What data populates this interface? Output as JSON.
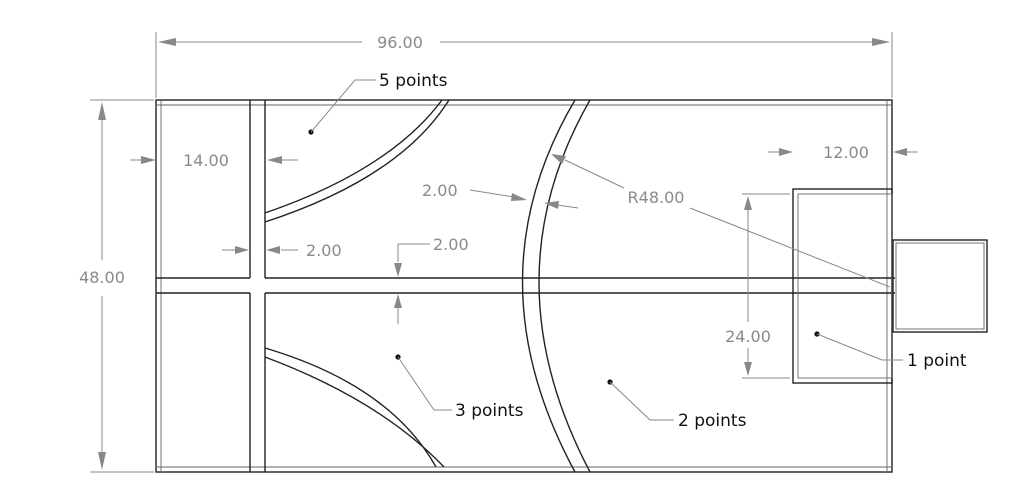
{
  "dimensions": {
    "overall_width": "96.00",
    "overall_height": "48.00",
    "left_offset": "14.00",
    "wall_vertical": "2.00",
    "wall_horizontal": "2.00",
    "arc_thickness": "2.00",
    "radius": "R48.00",
    "box_offset": "12.00",
    "box_height": "24.00"
  },
  "zones": [
    {
      "label": "5 points"
    },
    {
      "label": "3 points"
    },
    {
      "label": "2 points"
    },
    {
      "label": "1 point"
    }
  ],
  "colors": {
    "outline": "#222222",
    "dimension": "#888888",
    "label": "#111111",
    "background": "#ffffff"
  }
}
